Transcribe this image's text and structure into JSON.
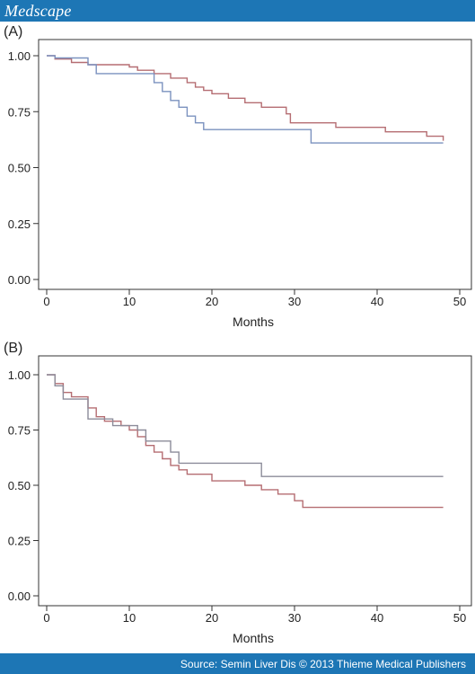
{
  "header": {
    "brand": "Medscape"
  },
  "footer": {
    "source": "Source: Semin Liver Dis © 2013 Thieme Medical Publishers"
  },
  "chart_data": [
    {
      "type": "line",
      "step": true,
      "panel_label": "(A)",
      "xlabel": "Months",
      "ylabel": "",
      "xlim": [
        0,
        50
      ],
      "ylim": [
        0,
        1
      ],
      "xticks": [
        0,
        10,
        20,
        30,
        40,
        50
      ],
      "yticks": [
        0,
        0.25,
        0.5,
        0.75,
        1
      ],
      "ytick_labels": [
        "0.00",
        "0.25",
        "0.50",
        "0.75",
        "1.00"
      ],
      "grid": false,
      "series": [
        {
          "color": "#b56d72",
          "points": [
            [
              0,
              1
            ],
            [
              1,
              0.985
            ],
            [
              3,
              0.97
            ],
            [
              5,
              0.96
            ],
            [
              10,
              0.95
            ],
            [
              11,
              0.935
            ],
            [
              13,
              0.92
            ],
            [
              15,
              0.9
            ],
            [
              17,
              0.88
            ],
            [
              18,
              0.86
            ],
            [
              19,
              0.845
            ],
            [
              20,
              0.83
            ],
            [
              22,
              0.81
            ],
            [
              24,
              0.79
            ],
            [
              26,
              0.77
            ],
            [
              29,
              0.74
            ],
            [
              29.5,
              0.7
            ],
            [
              35,
              0.68
            ],
            [
              41,
              0.66
            ],
            [
              46,
              0.64
            ],
            [
              48,
              0.62
            ]
          ]
        },
        {
          "color": "#7b92bf",
          "points": [
            [
              0,
              1
            ],
            [
              1,
              0.99
            ],
            [
              5,
              0.96
            ],
            [
              6,
              0.92
            ],
            [
              11,
              0.92
            ],
            [
              13,
              0.88
            ],
            [
              14,
              0.84
            ],
            [
              15,
              0.8
            ],
            [
              16,
              0.77
            ],
            [
              17,
              0.73
            ],
            [
              18,
              0.7
            ],
            [
              19,
              0.67
            ],
            [
              32,
              0.61
            ],
            [
              48,
              0.61
            ]
          ]
        }
      ]
    },
    {
      "type": "line",
      "step": true,
      "panel_label": "(B)",
      "xlabel": "Months",
      "ylabel": "",
      "xlim": [
        0,
        50
      ],
      "ylim": [
        0,
        1
      ],
      "xticks": [
        0,
        10,
        20,
        30,
        40,
        50
      ],
      "yticks": [
        0,
        0.25,
        0.5,
        0.75,
        1
      ],
      "ytick_labels": [
        "0.00",
        "0.25",
        "0.50",
        "0.75",
        "1.00"
      ],
      "grid": false,
      "series": [
        {
          "color": "#b56d72",
          "points": [
            [
              0,
              1
            ],
            [
              1,
              0.96
            ],
            [
              2,
              0.92
            ],
            [
              3,
              0.9
            ],
            [
              5,
              0.85
            ],
            [
              6,
              0.81
            ],
            [
              7,
              0.79
            ],
            [
              9,
              0.77
            ],
            [
              10,
              0.75
            ],
            [
              11,
              0.72
            ],
            [
              12,
              0.68
            ],
            [
              13,
              0.65
            ],
            [
              14,
              0.62
            ],
            [
              15,
              0.59
            ],
            [
              16,
              0.57
            ],
            [
              17,
              0.55
            ],
            [
              20,
              0.52
            ],
            [
              24,
              0.5
            ],
            [
              26,
              0.48
            ],
            [
              28,
              0.46
            ],
            [
              30,
              0.43
            ],
            [
              31,
              0.4
            ],
            [
              48,
              0.4
            ]
          ]
        },
        {
          "color": "#8c8c9a",
          "points": [
            [
              0,
              1
            ],
            [
              1,
              0.95
            ],
            [
              2,
              0.89
            ],
            [
              5,
              0.8
            ],
            [
              8,
              0.77
            ],
            [
              11,
              0.75
            ],
            [
              12,
              0.7
            ],
            [
              15,
              0.65
            ],
            [
              16,
              0.6
            ],
            [
              26,
              0.54
            ],
            [
              48,
              0.54
            ]
          ]
        }
      ]
    }
  ]
}
